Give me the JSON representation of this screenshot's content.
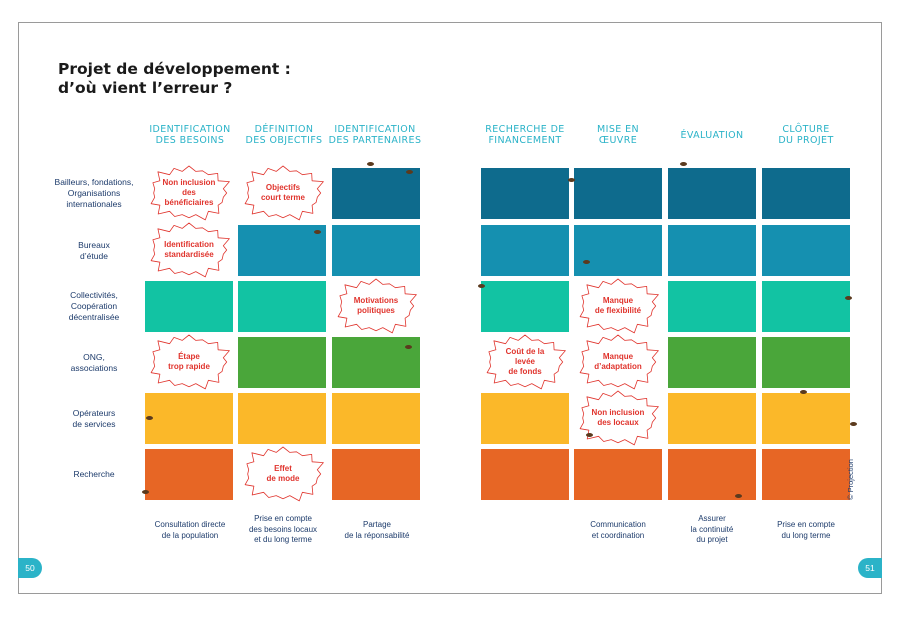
{
  "title_line1": "Projet de développement :",
  "title_line2": "d’où vient l’erreur ?",
  "columns": [
    {
      "line1": "Identification",
      "line2": "des besoins"
    },
    {
      "line1": "Définition",
      "line2": "des objectifs"
    },
    {
      "line1": "Identification",
      "line2": "des partenaires"
    },
    {
      "line1": "Recherche de",
      "line2": "financement"
    },
    {
      "line1": "Mise en",
      "line2": "œuvre"
    },
    {
      "line1": "Évaluation",
      "line2": ""
    },
    {
      "line1": "Clôture",
      "line2": "du projet"
    }
  ],
  "rows": [
    {
      "line1": "Bailleurs, fondations,",
      "line2": "Organisations",
      "line3": "internationales"
    },
    {
      "line1": "Bureaux",
      "line2": "d’étude",
      "line3": ""
    },
    {
      "line1": "Collectivités,",
      "line2": "Coopération",
      "line3": "décentralisée"
    },
    {
      "line1": "ONG,",
      "line2": "associations",
      "line3": ""
    },
    {
      "line1": "Opérateurs",
      "line2": "de services",
      "line3": ""
    },
    {
      "line1": "Recherche",
      "line2": "",
      "line3": ""
    }
  ],
  "errors": [
    {
      "line1": "Non inclusion",
      "line2": "des bénéficiaires"
    },
    {
      "line1": "Objectifs",
      "line2": "court terme"
    },
    {
      "line1": "Identification",
      "line2": "standardisée"
    },
    {
      "line1": "Motivations",
      "line2": "politiques"
    },
    {
      "line1": "Manque",
      "line2": "de flexibilité"
    },
    {
      "line1": "Étape",
      "line2": "trop rapide"
    },
    {
      "line1": "Coût de la levée",
      "line2": "de fonds"
    },
    {
      "line1": "Manque",
      "line2": "d’adaptation"
    },
    {
      "line1": "Non inclusion",
      "line2": "des locaux"
    },
    {
      "line1": "Effet",
      "line2": "de mode"
    }
  ],
  "footers": [
    {
      "line1": "Consultation directe",
      "line2": "de la population",
      "line3": ""
    },
    {
      "line1": "Prise en compte",
      "line2": "des besoins locaux",
      "line3": "et du long terme"
    },
    {
      "line1": "Partage",
      "line2": "de la réponsabilité",
      "line3": ""
    },
    {
      "line1": "Communication",
      "line2": "et coordination",
      "line3": ""
    },
    {
      "line1": "Assurer",
      "line2": "la continuité",
      "line3": "du projet"
    },
    {
      "line1": "Prise en compte",
      "line2": "du long terme",
      "line3": ""
    }
  ],
  "page_left": "50",
  "page_right": "51",
  "copyright": "© Projection",
  "colors": {
    "accent": "#2bb3c8",
    "row_colors": [
      "#0e6b8d",
      "#1590b0",
      "#12c3a3",
      "#4aa63a",
      "#fbb829",
      "#e76625"
    ],
    "error_text": "#e0342d"
  }
}
